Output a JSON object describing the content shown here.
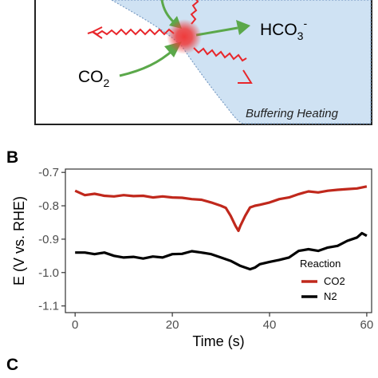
{
  "panels": {
    "a_diagram": {
      "labels": {
        "product_main": "HCO",
        "product_sub": "3",
        "product_sup": "-",
        "reactant_main": "CO",
        "reactant_sub": "2",
        "caption": "Buffering Heating"
      },
      "colors": {
        "region_fill": "#cfe2f3",
        "arrow_green": "#5ba84a",
        "wave_red": "#e8262b",
        "particle": "#ef3b3b"
      }
    },
    "b_letter": "B",
    "c_letter": "C"
  },
  "chart_data": {
    "type": "line",
    "xlabel": "Time (s)",
    "ylabel": "E (V vs. RHE)",
    "xlim": [
      -2,
      61
    ],
    "ylim": [
      -1.12,
      -0.69
    ],
    "x_ticks": [
      0,
      20,
      40,
      60
    ],
    "x_tick_labels": [
      "0",
      "20",
      "40",
      "60"
    ],
    "y_ticks": [
      -0.7,
      -0.8,
      -0.9,
      -1.0,
      -1.1
    ],
    "y_tick_labels": [
      "-0.7",
      "-0.8",
      "-0.9",
      "-1.0",
      "-1.1"
    ],
    "grid": false,
    "legend": {
      "title": "Reaction",
      "position": "bottom-right"
    },
    "series": [
      {
        "name": "CO2",
        "color": "#c0281c",
        "points": [
          [
            0,
            -0.755
          ],
          [
            2,
            -0.768
          ],
          [
            4,
            -0.764
          ],
          [
            6,
            -0.77
          ],
          [
            8,
            -0.772
          ],
          [
            10,
            -0.768
          ],
          [
            12,
            -0.771
          ],
          [
            14,
            -0.77
          ],
          [
            16,
            -0.775
          ],
          [
            18,
            -0.772
          ],
          [
            20,
            -0.775
          ],
          [
            22,
            -0.776
          ],
          [
            24,
            -0.78
          ],
          [
            26,
            -0.782
          ],
          [
            28,
            -0.79
          ],
          [
            30,
            -0.8
          ],
          [
            31,
            -0.806
          ],
          [
            32,
            -0.83
          ],
          [
            33,
            -0.86
          ],
          [
            33.6,
            -0.875
          ],
          [
            34,
            -0.86
          ],
          [
            35,
            -0.83
          ],
          [
            36,
            -0.805
          ],
          [
            37,
            -0.8
          ],
          [
            38,
            -0.797
          ],
          [
            40,
            -0.79
          ],
          [
            42,
            -0.78
          ],
          [
            44,
            -0.775
          ],
          [
            46,
            -0.765
          ],
          [
            48,
            -0.757
          ],
          [
            50,
            -0.76
          ],
          [
            52,
            -0.755
          ],
          [
            54,
            -0.752
          ],
          [
            56,
            -0.75
          ],
          [
            58,
            -0.748
          ],
          [
            60,
            -0.742
          ]
        ]
      },
      {
        "name": "N2",
        "color": "#000000",
        "points": [
          [
            0,
            -0.94
          ],
          [
            2,
            -0.94
          ],
          [
            4,
            -0.945
          ],
          [
            6,
            -0.94
          ],
          [
            8,
            -0.95
          ],
          [
            10,
            -0.955
          ],
          [
            12,
            -0.953
          ],
          [
            14,
            -0.958
          ],
          [
            16,
            -0.952
          ],
          [
            18,
            -0.955
          ],
          [
            20,
            -0.945
          ],
          [
            22,
            -0.944
          ],
          [
            24,
            -0.936
          ],
          [
            26,
            -0.94
          ],
          [
            28,
            -0.945
          ],
          [
            30,
            -0.955
          ],
          [
            32,
            -0.965
          ],
          [
            34,
            -0.98
          ],
          [
            36,
            -0.99
          ],
          [
            37,
            -0.985
          ],
          [
            38,
            -0.975
          ],
          [
            40,
            -0.968
          ],
          [
            42,
            -0.962
          ],
          [
            44,
            -0.955
          ],
          [
            46,
            -0.935
          ],
          [
            48,
            -0.93
          ],
          [
            50,
            -0.935
          ],
          [
            52,
            -0.925
          ],
          [
            54,
            -0.92
          ],
          [
            56,
            -0.905
          ],
          [
            58,
            -0.895
          ],
          [
            59,
            -0.882
          ],
          [
            60,
            -0.89
          ]
        ]
      }
    ]
  }
}
